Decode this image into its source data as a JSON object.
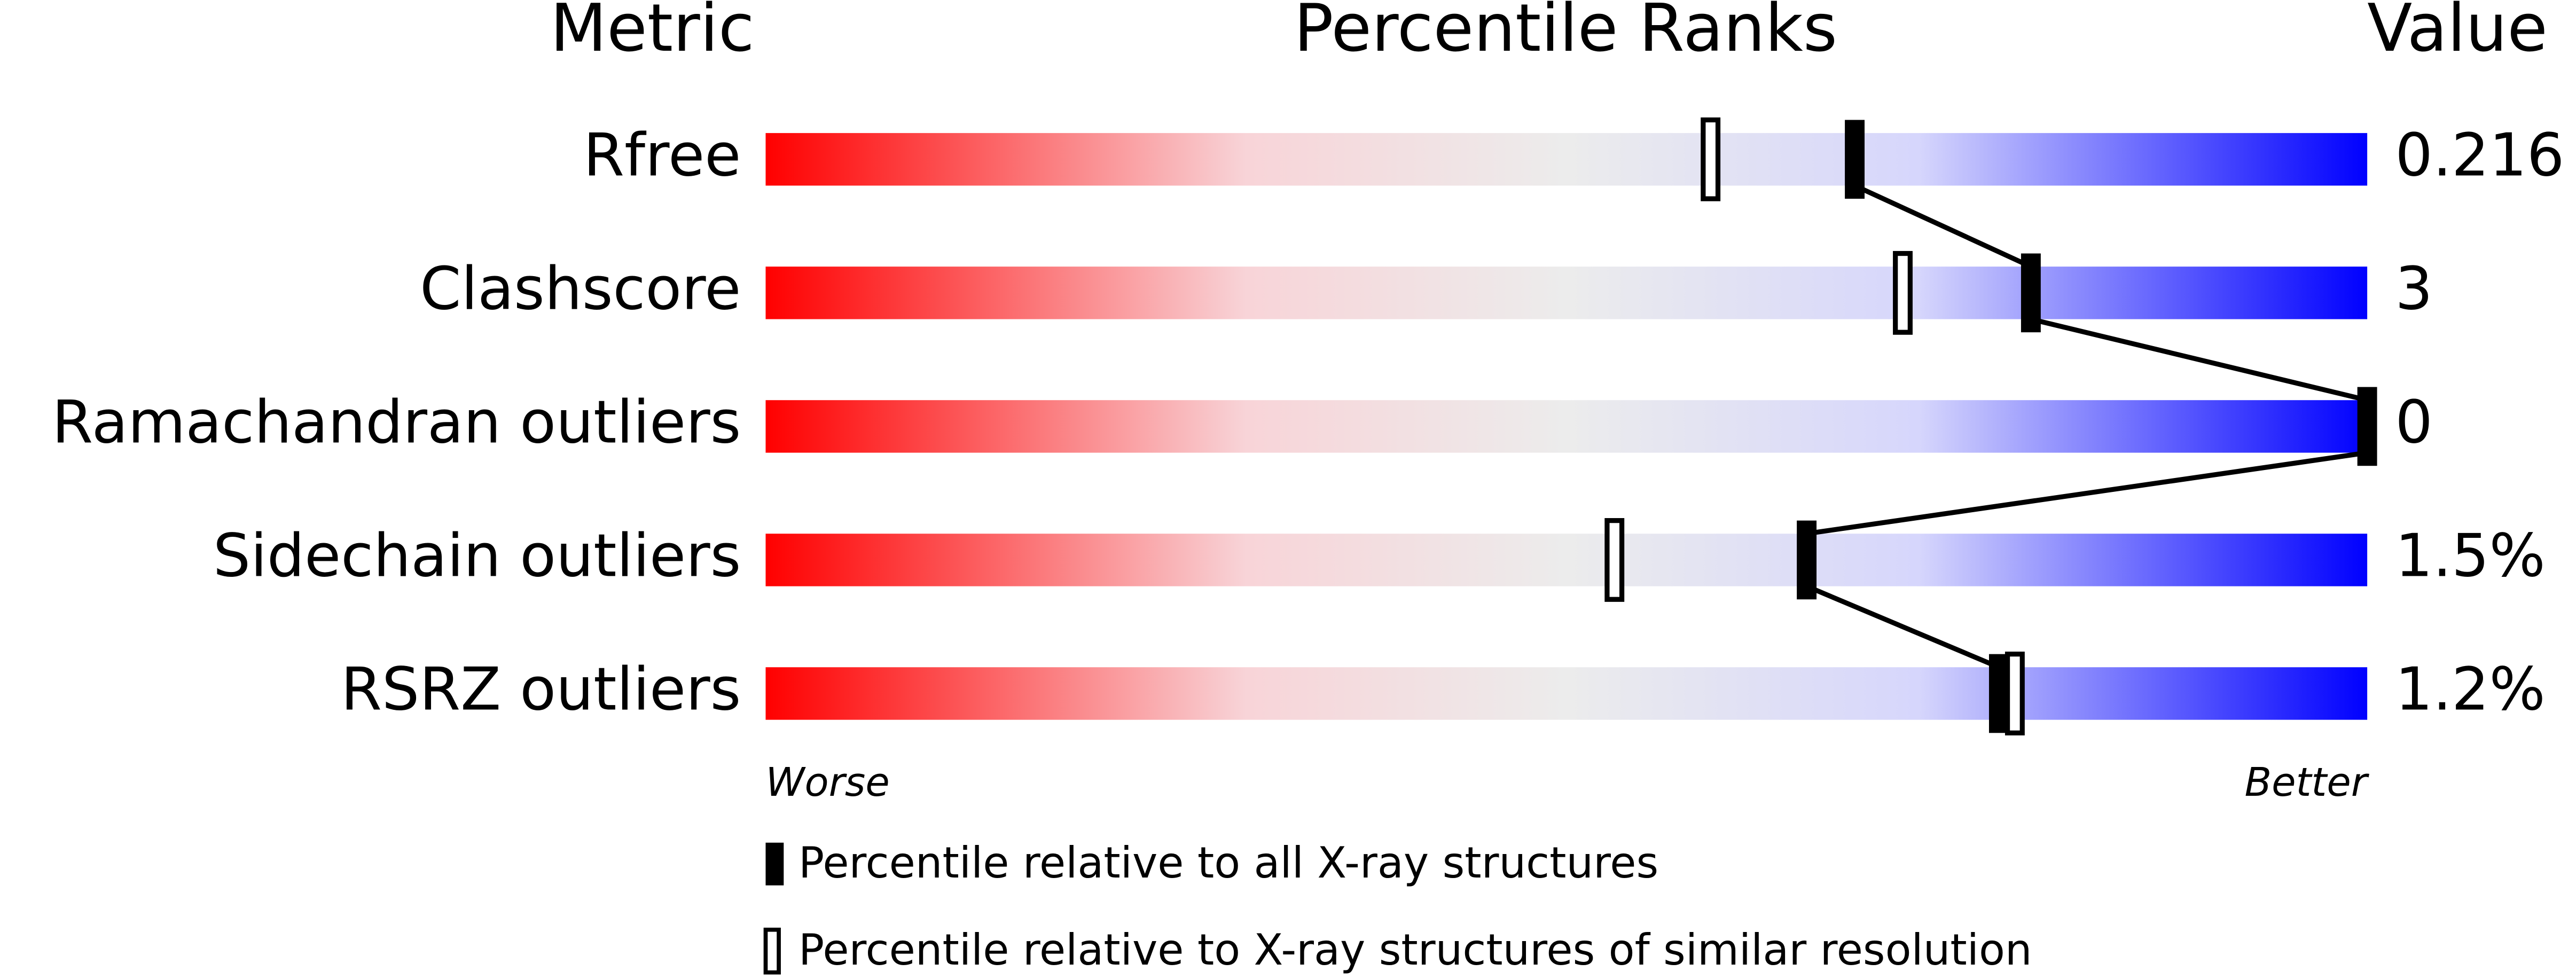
{
  "chart_data": {
    "type": "percentile-slider",
    "column_headers": [
      "Metric",
      "Percentile Ranks",
      "Value"
    ],
    "categories": [
      "Rfree",
      "Clashscore",
      "Ramachandran outliers",
      "Sidechain outliers",
      "RSRZ outliers"
    ],
    "series": [
      {
        "name": "Percentile relative to all X-ray structures",
        "color": "#000000",
        "values": [
          68,
          79,
          100,
          65,
          77
        ]
      },
      {
        "name": "Percentile relative to X-ray structures of similar resolution",
        "color": "#ffffff",
        "values": [
          59,
          71,
          null,
          53,
          78
        ]
      }
    ],
    "xlim": [
      0,
      100
    ],
    "axis_labels": [
      "Worse",
      "Better"
    ],
    "metric_values": {
      "values": [
        0.216,
        3,
        0,
        1.5,
        1.2
      ],
      "value_labels": [
        "0.216",
        "3",
        "0",
        "1.5%",
        "1.2%"
      ]
    }
  }
}
